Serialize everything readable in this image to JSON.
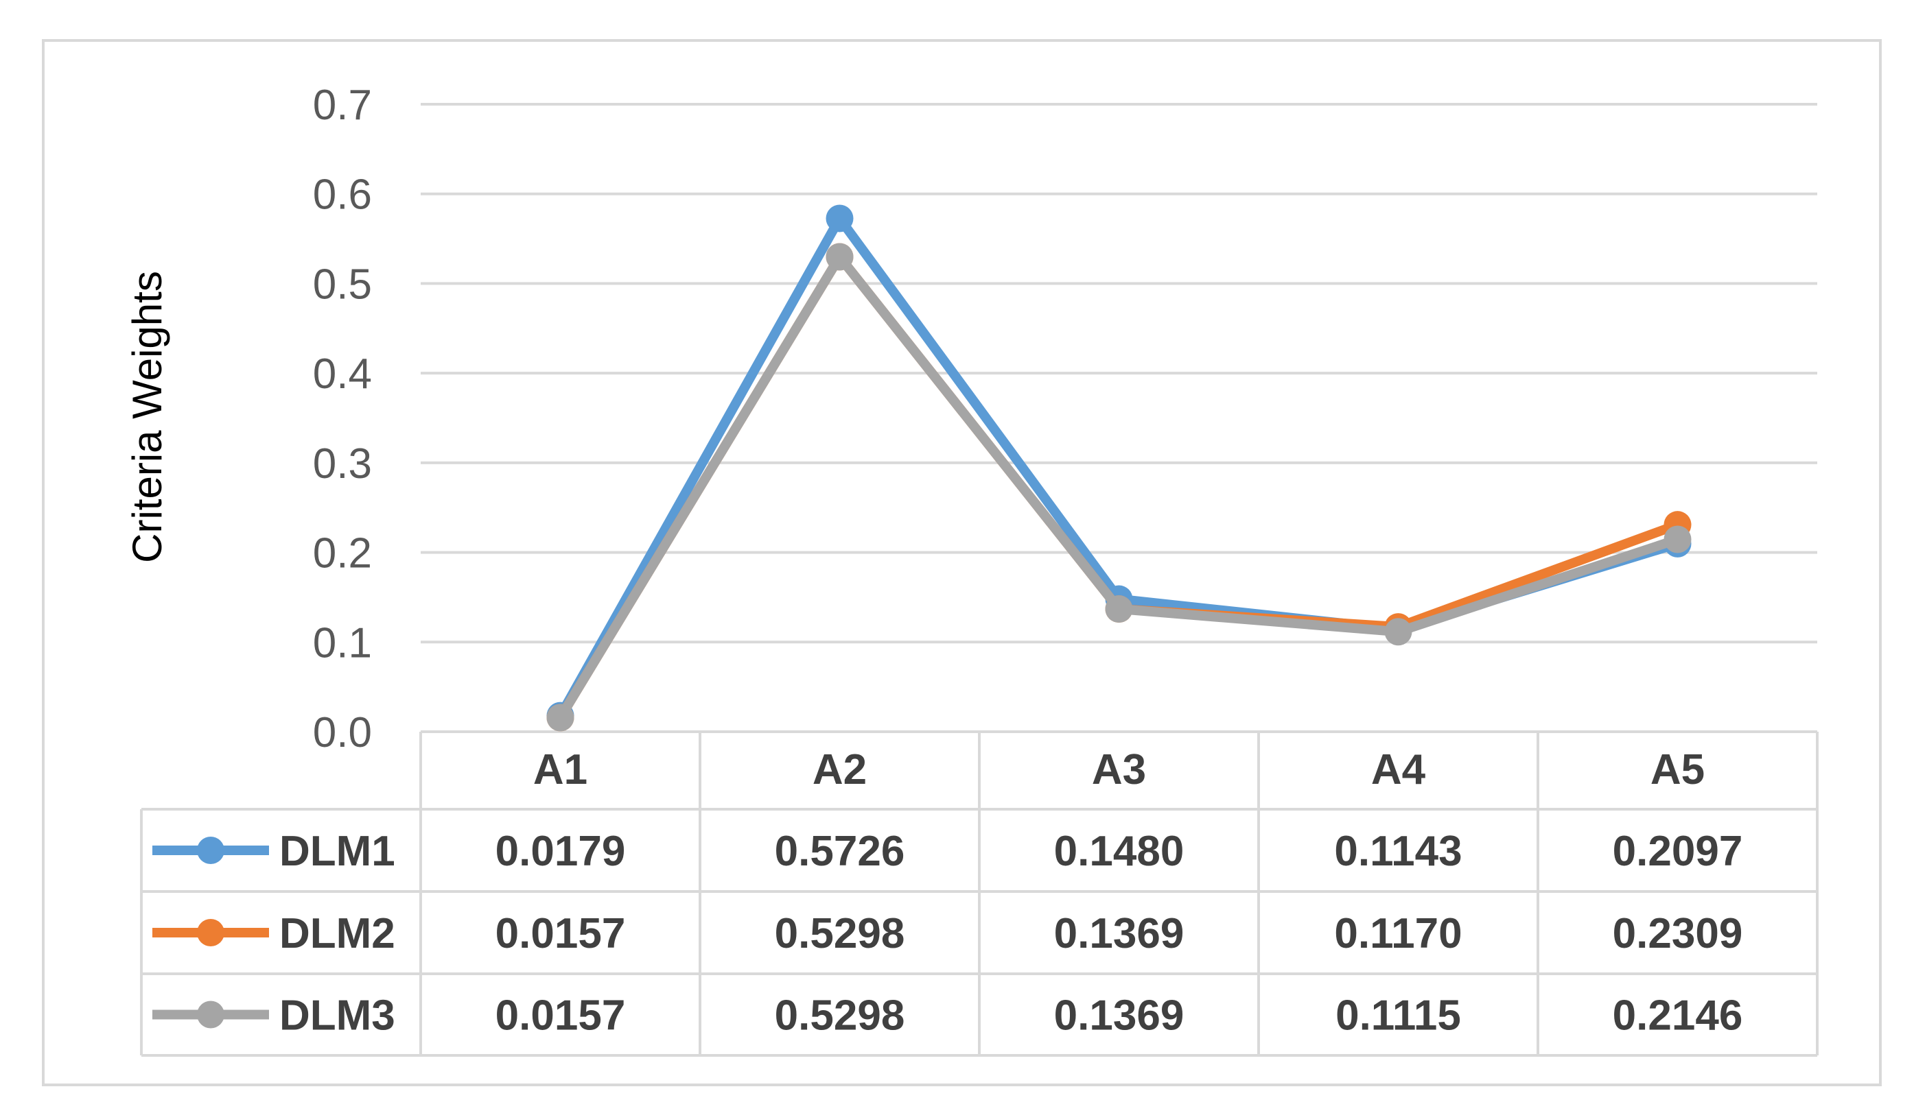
{
  "chart_data": {
    "type": "line",
    "title": "",
    "xlabel": "",
    "ylabel": "Criteria Weights",
    "ylim": [
      0.0,
      0.7
    ],
    "yticks": [
      "0.0",
      "0.1",
      "0.2",
      "0.3",
      "0.4",
      "0.5",
      "0.6",
      "0.7"
    ],
    "grid": true,
    "legend": "data-table-left",
    "categories": [
      "A1",
      "A2",
      "A3",
      "A4",
      "A5"
    ],
    "series": [
      {
        "name": "DLM1",
        "color": "#5B9BD5",
        "values": [
          0.0179,
          0.5726,
          0.148,
          0.1143,
          0.2097
        ],
        "labels": [
          "0.0179",
          "0.5726",
          "0.1480",
          "0.1143",
          "0.2097"
        ]
      },
      {
        "name": "DLM2",
        "color": "#ED7D31",
        "values": [
          0.0157,
          0.5298,
          0.1369,
          0.117,
          0.2309
        ],
        "labels": [
          "0.0157",
          "0.5298",
          "0.1369",
          "0.1170",
          "0.2309"
        ]
      },
      {
        "name": "DLM3",
        "color": "#A5A5A5",
        "values": [
          0.0157,
          0.5298,
          0.1369,
          0.1115,
          0.2146
        ],
        "labels": [
          "0.0157",
          "0.5298",
          "0.1369",
          "0.1115",
          "0.2146"
        ]
      }
    ]
  }
}
